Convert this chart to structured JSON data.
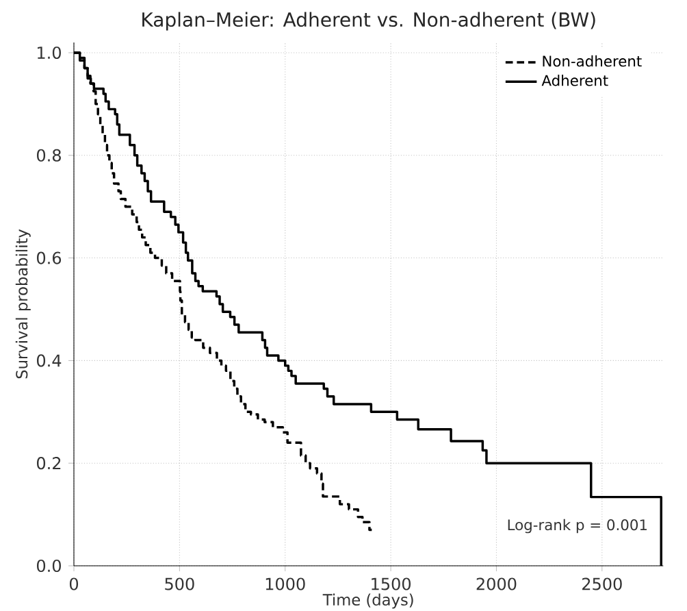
{
  "chart_data": {
    "type": "step",
    "title": "Kaplan–Meier: Adherent vs. Non-adherent (BW)",
    "xlabel": "Time (days)",
    "ylabel": "Survival probability",
    "xlim": [
      0,
      2790
    ],
    "ylim": [
      0,
      1.02
    ],
    "xticks": [
      0,
      500,
      1000,
      1500,
      2000,
      2500
    ],
    "yticks": [
      {
        "value": 0,
        "label": "0.0"
      },
      {
        "value": 0.2,
        "label": "0.2"
      },
      {
        "value": 0.4,
        "label": "0.4"
      },
      {
        "value": 0.6,
        "label": "0.6"
      },
      {
        "value": 0.8,
        "label": "0.8"
      },
      {
        "value": 1,
        "label": "1.0"
      }
    ],
    "grid": true,
    "legend": "top right",
    "annotations": [
      "Log-rank p = 0.001"
    ],
    "series": [
      {
        "name": "Non-adherent",
        "color": "#000000",
        "line_style": "dashed",
        "x": [
          0,
          28,
          50,
          65,
          78,
          93,
          103,
          114,
          125,
          136,
          147,
          157,
          168,
          179,
          190,
          211,
          222,
          244,
          276,
          297,
          308,
          323,
          340,
          362,
          384,
          416,
          437,
          465,
          502,
          504,
          511,
          526,
          543,
          558,
          575,
          612,
          644,
          677,
          698,
          720,
          741,
          759,
          774,
          791,
          812,
          838,
          871,
          903,
          942,
          989,
          1011,
          1075,
          1097,
          1118,
          1151,
          1172,
          1179,
          1259,
          1302,
          1345,
          1366,
          1399,
          1410
        ],
        "values": [
          1.0,
          0.985,
          0.97,
          0.955,
          0.94,
          0.925,
          0.9,
          0.88,
          0.86,
          0.84,
          0.82,
          0.8,
          0.785,
          0.765,
          0.745,
          0.73,
          0.715,
          0.7,
          0.685,
          0.67,
          0.655,
          0.64,
          0.625,
          0.61,
          0.6,
          0.585,
          0.57,
          0.555,
          0.535,
          0.517,
          0.49,
          0.475,
          0.46,
          0.445,
          0.44,
          0.425,
          0.415,
          0.4,
          0.39,
          0.38,
          0.36,
          0.345,
          0.33,
          0.315,
          0.3,
          0.295,
          0.285,
          0.28,
          0.27,
          0.26,
          0.24,
          0.215,
          0.2,
          0.19,
          0.18,
          0.16,
          0.135,
          0.12,
          0.11,
          0.095,
          0.085,
          0.07,
          0.07
        ]
      },
      {
        "name": "Adherent",
        "color": "#000000",
        "line_style": "solid",
        "x": [
          0,
          28,
          50,
          65,
          80,
          95,
          140,
          150,
          165,
          195,
          205,
          215,
          265,
          287,
          300,
          320,
          335,
          350,
          365,
          427,
          459,
          480,
          495,
          517,
          530,
          540,
          560,
          575,
          590,
          610,
          675,
          690,
          705,
          740,
          760,
          780,
          892,
          905,
          915,
          968,
          1000,
          1015,
          1030,
          1050,
          1183,
          1200,
          1230,
          1407,
          1530,
          1630,
          1785,
          1935,
          1953,
          2448,
          2780
        ],
        "values": [
          1.0,
          0.99,
          0.97,
          0.95,
          0.94,
          0.93,
          0.92,
          0.905,
          0.89,
          0.88,
          0.86,
          0.84,
          0.82,
          0.8,
          0.78,
          0.765,
          0.75,
          0.73,
          0.71,
          0.69,
          0.68,
          0.665,
          0.65,
          0.63,
          0.61,
          0.595,
          0.57,
          0.555,
          0.545,
          0.535,
          0.525,
          0.51,
          0.495,
          0.485,
          0.47,
          0.455,
          0.44,
          0.425,
          0.41,
          0.4,
          0.39,
          0.38,
          0.37,
          0.355,
          0.345,
          0.33,
          0.315,
          0.3,
          0.285,
          0.266,
          0.243,
          0.225,
          0.2,
          0.134,
          0.0
        ]
      }
    ]
  }
}
